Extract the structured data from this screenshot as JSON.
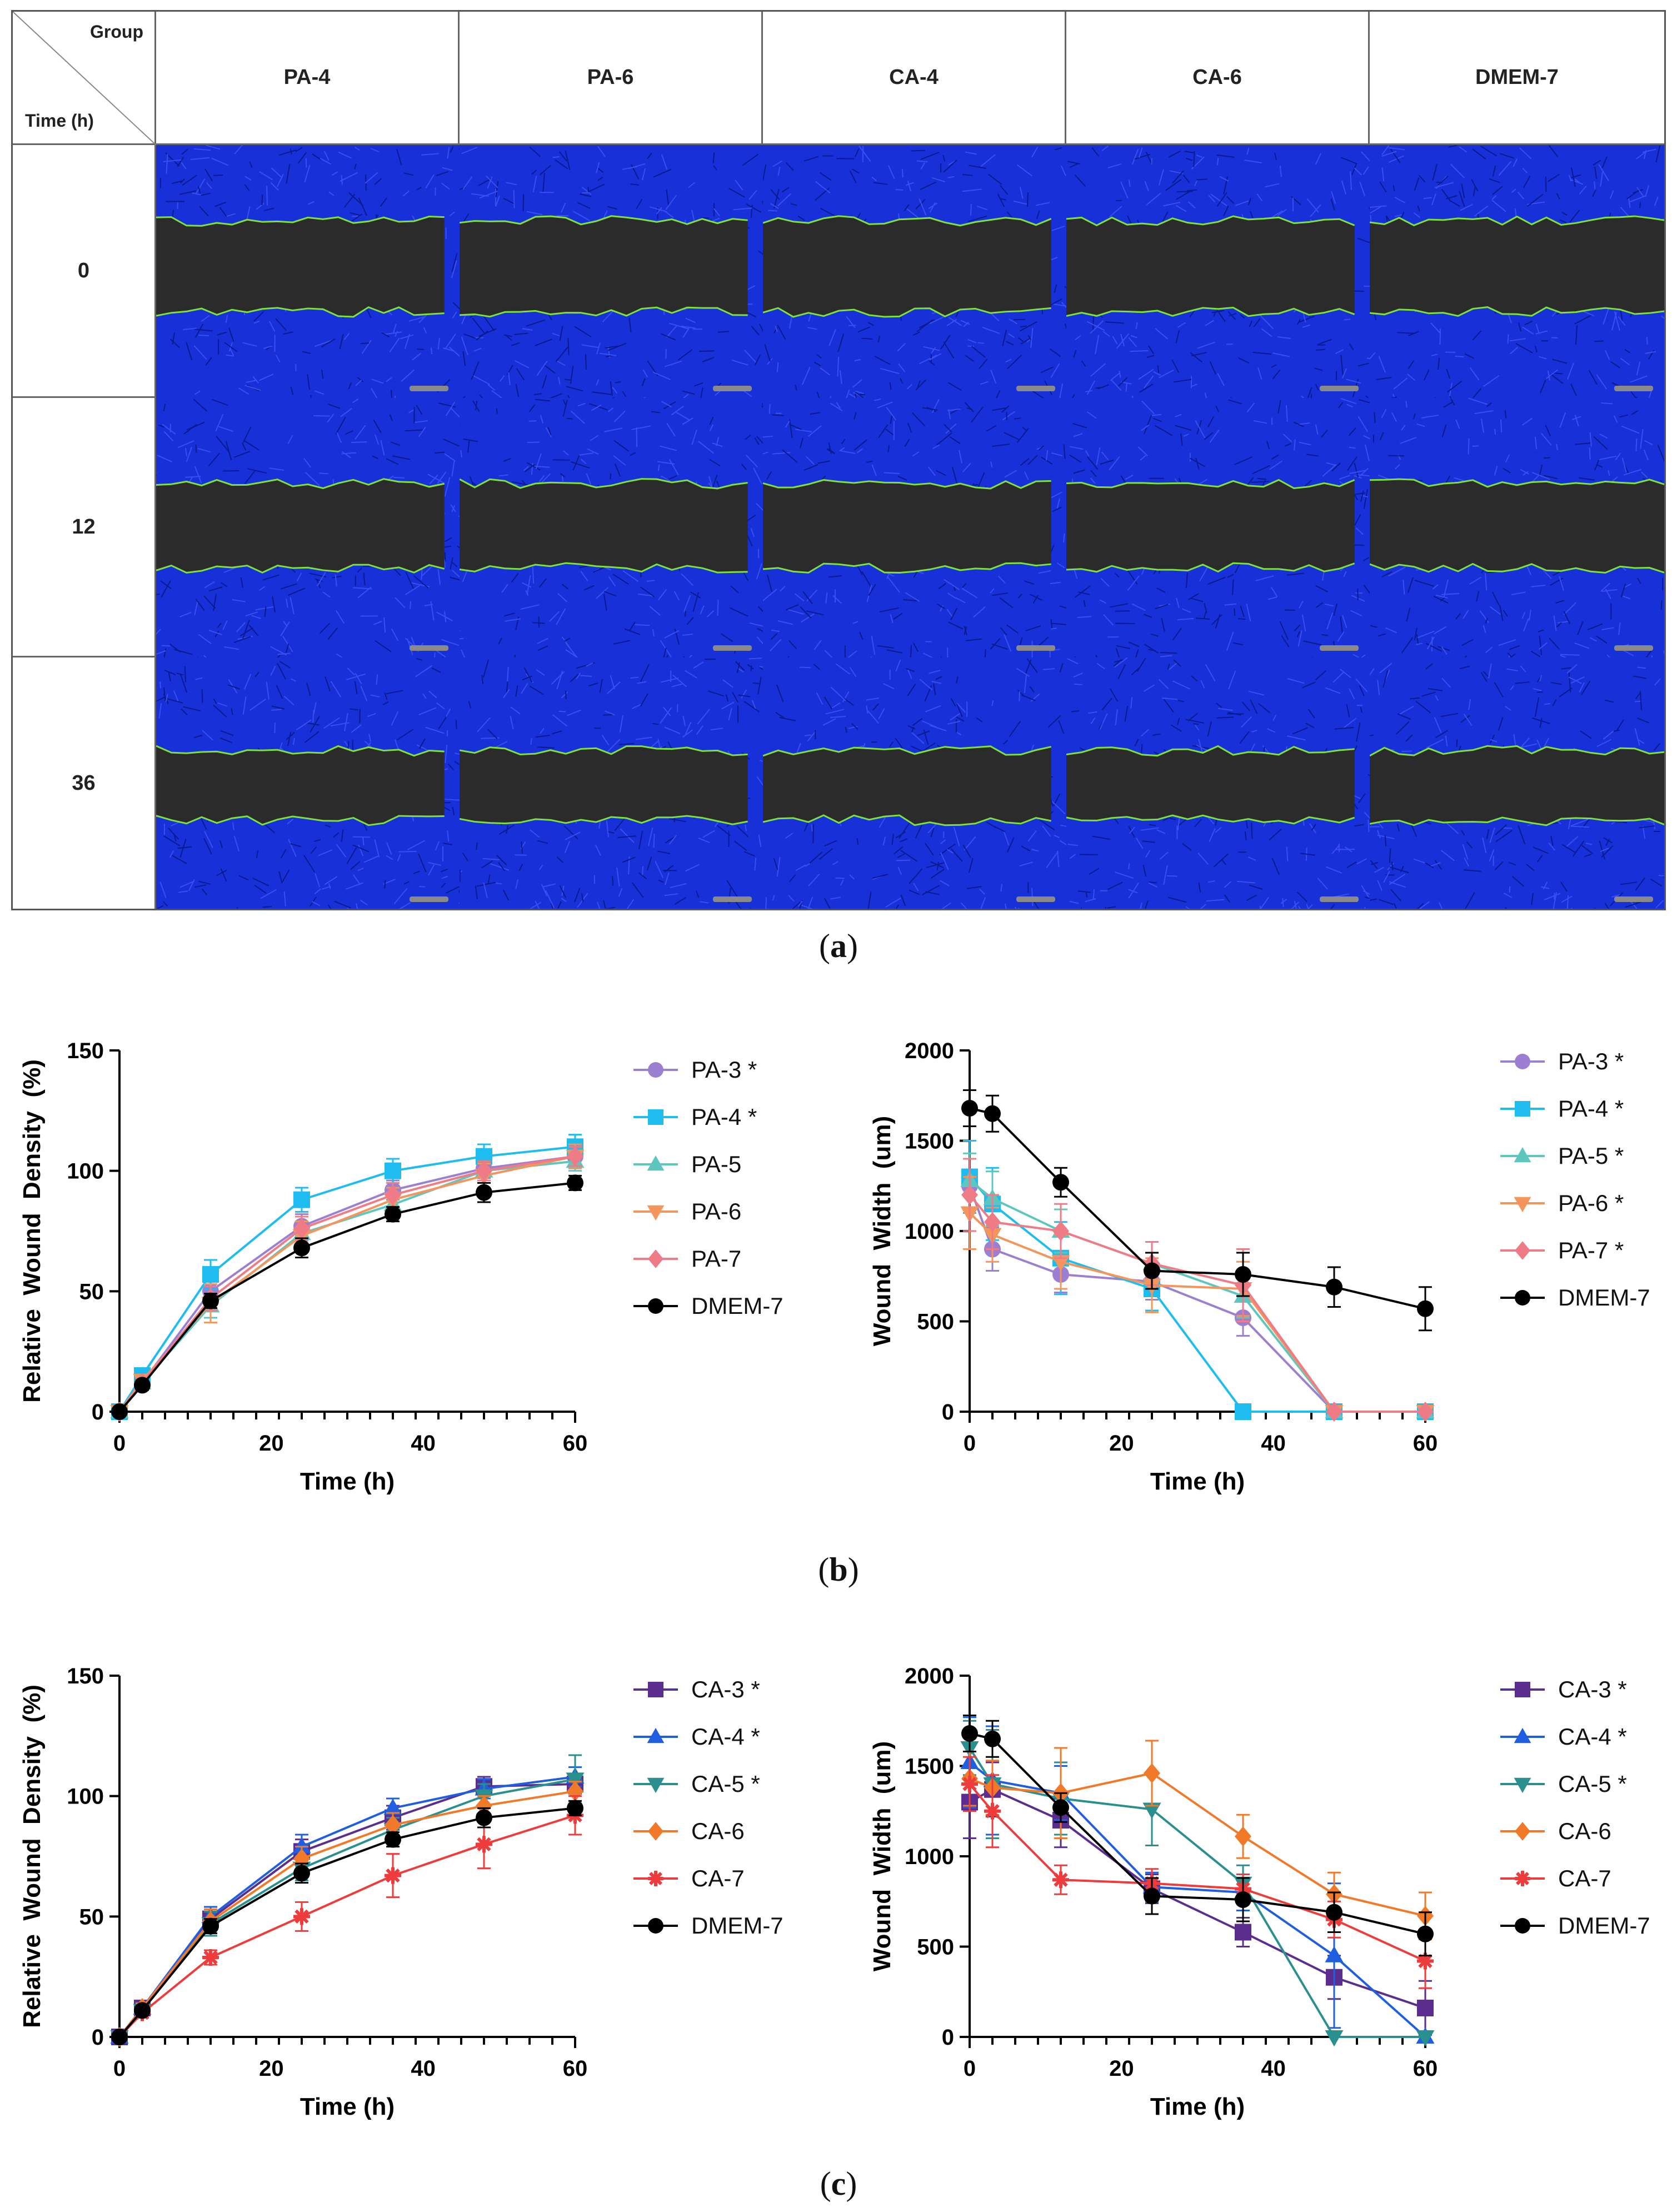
{
  "panel_a": {
    "corner_group": "Group",
    "corner_time": "Time (h)",
    "groups": [
      "PA-4",
      "PA-6",
      "CA-4",
      "CA-6",
      "DMEM-7"
    ],
    "times": [
      "0",
      "12",
      "36"
    ],
    "caption_letter": "a"
  },
  "captions": {
    "b": "b",
    "c": "c"
  },
  "colors": {
    "PA-3": "#9c7fd1",
    "PA-4": "#1fbcf0",
    "PA-5": "#5fc6bf",
    "PA-6": "#f4955b",
    "PA-7": "#ef7b86",
    "CA-3": "#5b2d8e",
    "CA-4": "#1f5ede",
    "CA-5": "#2a8f8f",
    "CA-6": "#f07a2a",
    "CA-7": "#ee3b3b",
    "DMEM-7": "#000000"
  },
  "chart_data": [
    {
      "type": "line",
      "id": "b_left",
      "xlabel": "Time (h)",
      "ylabel": "Relative  Wound  Density  (%)",
      "xlim": [
        0,
        60
      ],
      "ylim": [
        0,
        150
      ],
      "xticks": [
        0,
        20,
        40,
        60
      ],
      "yticks": [
        0,
        50,
        100,
        150
      ],
      "legend_labels": [
        "PA-3 *",
        "PA-4 *",
        "PA-5",
        "PA-6",
        "PA-7",
        "DMEM-7"
      ],
      "series": [
        {
          "name": "PA-3 *",
          "key": "PA-3",
          "marker": "circle",
          "x": [
            0,
            3,
            12,
            24,
            36,
            48,
            60
          ],
          "y": [
            0,
            12,
            50,
            77,
            92,
            101,
            106
          ],
          "err": [
            0,
            2,
            4,
            5,
            4,
            4,
            4
          ]
        },
        {
          "name": "PA-4 *",
          "key": "PA-4",
          "marker": "square",
          "x": [
            0,
            3,
            12,
            24,
            36,
            48,
            60
          ],
          "y": [
            0,
            15,
            57,
            88,
            100,
            106,
            110
          ],
          "err": [
            0,
            2,
            6,
            5,
            5,
            5,
            5
          ]
        },
        {
          "name": "PA-5",
          "key": "PA-5",
          "marker": "triangle-up",
          "x": [
            0,
            3,
            12,
            24,
            36,
            48,
            60
          ],
          "y": [
            0,
            12,
            44,
            74,
            86,
            100,
            104
          ],
          "err": [
            0,
            2,
            5,
            5,
            5,
            4,
            4
          ]
        },
        {
          "name": "PA-6",
          "key": "PA-6",
          "marker": "triangle-down",
          "x": [
            0,
            3,
            12,
            24,
            36,
            48,
            60
          ],
          "y": [
            0,
            13,
            45,
            73,
            88,
            98,
            106
          ],
          "err": [
            0,
            2,
            8,
            6,
            5,
            5,
            5
          ]
        },
        {
          "name": "PA-7",
          "key": "PA-7",
          "marker": "diamond",
          "x": [
            0,
            3,
            12,
            24,
            36,
            48,
            60
          ],
          "y": [
            0,
            12,
            47,
            76,
            90,
            100,
            106
          ],
          "err": [
            0,
            2,
            5,
            5,
            5,
            4,
            4
          ]
        },
        {
          "name": "DMEM-7",
          "key": "DMEM-7",
          "marker": "circle",
          "x": [
            0,
            3,
            12,
            24,
            36,
            48,
            60
          ],
          "y": [
            0,
            11,
            46,
            68,
            82,
            91,
            95
          ],
          "err": [
            0,
            2,
            3,
            4,
            3,
            4,
            3
          ]
        }
      ]
    },
    {
      "type": "line",
      "id": "b_right",
      "xlabel": "Time (h)",
      "ylabel": "Wound  Width  (um)",
      "xlim": [
        0,
        60
      ],
      "ylim": [
        0,
        2000
      ],
      "xticks": [
        0,
        20,
        40,
        60
      ],
      "yticks": [
        0,
        500,
        1000,
        1500,
        2000
      ],
      "legend_labels": [
        "PA-3 *",
        "PA-4 *",
        "PA-5 *",
        "PA-6 *",
        "PA-7 *",
        "DMEM-7"
      ],
      "series": [
        {
          "name": "PA-3 *",
          "key": "PA-3",
          "marker": "circle",
          "x": [
            0,
            3,
            12,
            24,
            36,
            48,
            60
          ],
          "y": [
            1250,
            900,
            760,
            720,
            520,
            0,
            0
          ],
          "err": [
            150,
            120,
            100,
            100,
            100,
            0,
            0
          ]
        },
        {
          "name": "PA-4 *",
          "key": "PA-4",
          "marker": "square",
          "x": [
            0,
            3,
            12,
            24,
            36,
            48,
            60
          ],
          "y": [
            1300,
            1150,
            850,
            680,
            0,
            0,
            0
          ],
          "err": [
            200,
            200,
            200,
            120,
            0,
            0,
            0
          ]
        },
        {
          "name": "PA-5 *",
          "key": "PA-5",
          "marker": "triangle-up",
          "x": [
            0,
            3,
            12,
            24,
            36,
            48,
            60
          ],
          "y": [
            1280,
            1180,
            1000,
            820,
            640,
            0,
            0
          ],
          "err": [
            150,
            150,
            120,
            120,
            120,
            0,
            0
          ]
        },
        {
          "name": "PA-6 *",
          "key": "PA-6",
          "marker": "triangle-down",
          "x": [
            0,
            3,
            12,
            24,
            36,
            48,
            60
          ],
          "y": [
            1100,
            980,
            830,
            700,
            680,
            0,
            0
          ],
          "err": [
            200,
            150,
            150,
            150,
            150,
            0,
            0
          ]
        },
        {
          "name": "PA-7 *",
          "key": "PA-7",
          "marker": "diamond",
          "x": [
            0,
            3,
            12,
            24,
            36,
            48,
            60
          ],
          "y": [
            1200,
            1050,
            1000,
            820,
            700,
            0,
            0
          ],
          "err": [
            200,
            150,
            150,
            120,
            200,
            0,
            0
          ]
        },
        {
          "name": "DMEM-7",
          "key": "DMEM-7",
          "marker": "circle",
          "x": [
            0,
            3,
            12,
            24,
            36,
            48,
            60
          ],
          "y": [
            1680,
            1650,
            1270,
            780,
            760,
            690,
            570
          ],
          "err": [
            100,
            100,
            80,
            100,
            120,
            110,
            120
          ]
        }
      ]
    },
    {
      "type": "line",
      "id": "c_left",
      "xlabel": "Time (h)",
      "ylabel": "Relative  Wound  Density  (%)",
      "xlim": [
        0,
        60
      ],
      "ylim": [
        0,
        150
      ],
      "xticks": [
        0,
        20,
        40,
        60
      ],
      "yticks": [
        0,
        50,
        100,
        150
      ],
      "legend_labels": [
        "CA-3 *",
        "CA-4 *",
        "CA-5 *",
        "CA-6",
        "CA-7",
        "DMEM-7"
      ],
      "series": [
        {
          "name": "CA-3 *",
          "key": "CA-3",
          "marker": "square",
          "x": [
            0,
            3,
            12,
            24,
            36,
            48,
            60
          ],
          "y": [
            0,
            12,
            49,
            77,
            91,
            104,
            105
          ],
          "err": [
            0,
            2,
            4,
            5,
            5,
            4,
            4
          ]
        },
        {
          "name": "CA-4 *",
          "key": "CA-4",
          "marker": "triangle-up",
          "x": [
            0,
            3,
            12,
            24,
            36,
            48,
            60
          ],
          "y": [
            0,
            12,
            50,
            79,
            95,
            103,
            108
          ],
          "err": [
            0,
            2,
            4,
            5,
            4,
            4,
            4
          ]
        },
        {
          "name": "CA-5 *",
          "key": "CA-5",
          "marker": "triangle-down",
          "x": [
            0,
            3,
            12,
            24,
            36,
            48,
            60
          ],
          "y": [
            0,
            11,
            47,
            70,
            86,
            100,
            107
          ],
          "err": [
            0,
            2,
            5,
            5,
            5,
            5,
            10
          ]
        },
        {
          "name": "CA-6",
          "key": "CA-6",
          "marker": "diamond",
          "x": [
            0,
            3,
            12,
            24,
            36,
            48,
            60
          ],
          "y": [
            0,
            12,
            48,
            74,
            88,
            96,
            102
          ],
          "err": [
            0,
            2,
            5,
            5,
            5,
            4,
            4
          ]
        },
        {
          "name": "CA-7",
          "key": "CA-7",
          "marker": "star",
          "x": [
            0,
            3,
            12,
            24,
            36,
            48,
            60
          ],
          "y": [
            0,
            10,
            33,
            50,
            67,
            80,
            92
          ],
          "err": [
            0,
            2,
            3,
            6,
            9,
            10,
            8
          ]
        },
        {
          "name": "DMEM-7",
          "key": "DMEM-7",
          "marker": "circle",
          "x": [
            0,
            3,
            12,
            24,
            36,
            48,
            60
          ],
          "y": [
            0,
            11,
            46,
            68,
            82,
            91,
            95
          ],
          "err": [
            0,
            2,
            3,
            4,
            3,
            4,
            3
          ]
        }
      ]
    },
    {
      "type": "line",
      "id": "c_right",
      "xlabel": "Time (h)",
      "ylabel": "Wound  Width  (um)",
      "xlim": [
        0,
        60
      ],
      "ylim": [
        0,
        2000
      ],
      "xticks": [
        0,
        20,
        40,
        60
      ],
      "yticks": [
        0,
        500,
        1000,
        1500,
        2000
      ],
      "legend_labels": [
        "CA-3 *",
        "CA-4 *",
        "CA-5 *",
        "CA-6",
        "CA-7",
        "DMEM-7"
      ],
      "series": [
        {
          "name": "CA-3 *",
          "key": "CA-3",
          "marker": "square",
          "x": [
            0,
            3,
            12,
            24,
            36,
            48,
            60
          ],
          "y": [
            1300,
            1370,
            1200,
            820,
            580,
            330,
            160
          ],
          "err": [
            200,
            150,
            150,
            80,
            80,
            120,
            150
          ]
        },
        {
          "name": "CA-4 *",
          "key": "CA-4",
          "marker": "triangle-up",
          "x": [
            0,
            3,
            12,
            24,
            36,
            48,
            60
          ],
          "y": [
            1520,
            1420,
            1350,
            830,
            800,
            450,
            0
          ],
          "err": [
            250,
            300,
            150,
            80,
            100,
            400,
            0
          ]
        },
        {
          "name": "CA-5 *",
          "key": "CA-5",
          "marker": "triangle-down",
          "x": [
            0,
            3,
            12,
            24,
            36,
            48,
            60
          ],
          "y": [
            1600,
            1400,
            1320,
            1260,
            850,
            0,
            0
          ],
          "err": [
            150,
            300,
            200,
            200,
            100,
            0,
            0
          ]
        },
        {
          "name": "CA-6",
          "key": "CA-6",
          "marker": "diamond",
          "x": [
            0,
            3,
            12,
            24,
            36,
            48,
            60
          ],
          "y": [
            1430,
            1380,
            1350,
            1460,
            1110,
            790,
            670
          ],
          "err": [
            150,
            150,
            250,
            180,
            120,
            120,
            130
          ]
        },
        {
          "name": "CA-7",
          "key": "CA-7",
          "marker": "star",
          "x": [
            0,
            3,
            12,
            24,
            36,
            48,
            60
          ],
          "y": [
            1400,
            1250,
            870,
            850,
            820,
            650,
            420
          ],
          "err": [
            150,
            200,
            80,
            80,
            80,
            100,
            150
          ]
        },
        {
          "name": "DMEM-7",
          "key": "DMEM-7",
          "marker": "circle",
          "x": [
            0,
            3,
            12,
            24,
            36,
            48,
            60
          ],
          "y": [
            1680,
            1650,
            1270,
            780,
            760,
            690,
            570
          ],
          "err": [
            100,
            100,
            80,
            100,
            120,
            110,
            120
          ]
        }
      ]
    }
  ]
}
